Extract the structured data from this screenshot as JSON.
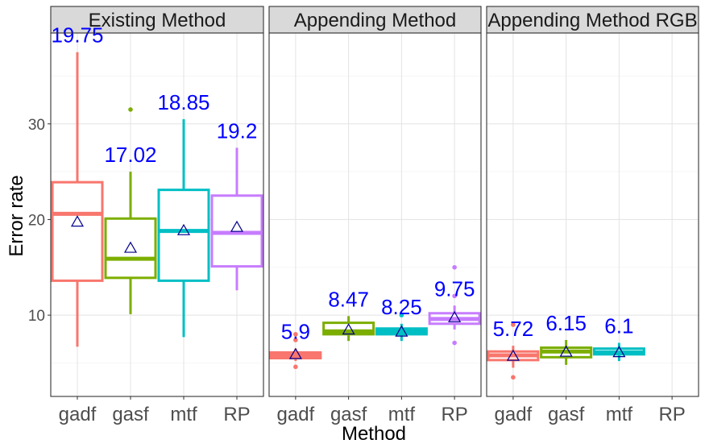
{
  "chart_data": {
    "type": "boxplot",
    "xlabel": "Method",
    "ylabel": "Error rate",
    "ylim": [
      1.5,
      39.5
    ],
    "yticks": [
      10,
      20,
      30
    ],
    "grid": true,
    "legend": "none",
    "categories": [
      "gadf",
      "gasf",
      "mtf",
      "RP"
    ],
    "colors": {
      "gadf": "#F8766D",
      "gasf": "#7CAE00",
      "mtf": "#00BFC4",
      "RP": "#C77CFF"
    },
    "mean_marker_color": "#00008B",
    "mean_label_color": "#0000FF",
    "panels": [
      {
        "name": "Existing Method",
        "boxes": [
          {
            "category": "gadf",
            "min": 6.7,
            "q1": 13.6,
            "median": 20.6,
            "q3": 23.9,
            "max": 37.5,
            "mean": 19.75,
            "mean_label": "19.75",
            "outliers": []
          },
          {
            "category": "gasf",
            "min": 10.1,
            "q1": 13.9,
            "median": 15.9,
            "q3": 20.1,
            "max": 25.0,
            "mean": 17.02,
            "mean_label": "17.02",
            "outliers": [
              31.5
            ]
          },
          {
            "category": "mtf",
            "min": 7.7,
            "q1": 13.6,
            "median": 18.8,
            "q3": 23.1,
            "max": 30.5,
            "mean": 18.85,
            "mean_label": "18.85",
            "outliers": []
          },
          {
            "category": "RP",
            "min": 12.6,
            "q1": 15.1,
            "median": 18.6,
            "q3": 22.5,
            "max": 27.5,
            "mean": 19.2,
            "mean_label": "19.2",
            "outliers": []
          }
        ]
      },
      {
        "name": "Appending Method",
        "boxes": [
          {
            "category": "gadf",
            "min": 5.2,
            "q1": 5.5,
            "median": 5.8,
            "q3": 6.1,
            "max": 6.5,
            "mean": 5.9,
            "mean_label": "5.9",
            "outliers": [
              4.6,
              7.4,
              8.0
            ]
          },
          {
            "category": "gasf",
            "min": 7.3,
            "q1": 8.0,
            "median": 8.3,
            "q3": 9.2,
            "max": 9.9,
            "mean": 8.47,
            "mean_label": "8.47",
            "outliers": []
          },
          {
            "category": "mtf",
            "min": 7.3,
            "q1": 8.0,
            "median": 8.3,
            "q3": 8.6,
            "max": 9.1,
            "mean": 8.25,
            "mean_label": "8.25",
            "outliers": [
              10.0
            ]
          },
          {
            "category": "RP",
            "min": 8.5,
            "q1": 9.1,
            "median": 9.6,
            "q3": 10.2,
            "max": 11.0,
            "mean": 9.75,
            "mean_label": "9.75",
            "outliers": [
              7.1,
              12.0,
              15.0
            ]
          }
        ]
      },
      {
        "name": "Appending Method RGB",
        "boxes": [
          {
            "category": "gadf",
            "min": 4.5,
            "q1": 5.3,
            "median": 5.8,
            "q3": 6.2,
            "max": 6.8,
            "mean": 5.72,
            "mean_label": "5.72",
            "outliers": [
              3.5,
              9.0
            ]
          },
          {
            "category": "gasf",
            "min": 4.8,
            "q1": 5.6,
            "median": 6.2,
            "q3": 6.6,
            "max": 7.4,
            "mean": 6.15,
            "mean_label": "6.15",
            "outliers": []
          },
          {
            "category": "mtf",
            "min": 5.2,
            "q1": 5.9,
            "median": 6.1,
            "q3": 6.5,
            "max": 7.1,
            "mean": 6.1,
            "mean_label": "6.1",
            "outliers": []
          }
        ]
      }
    ]
  }
}
